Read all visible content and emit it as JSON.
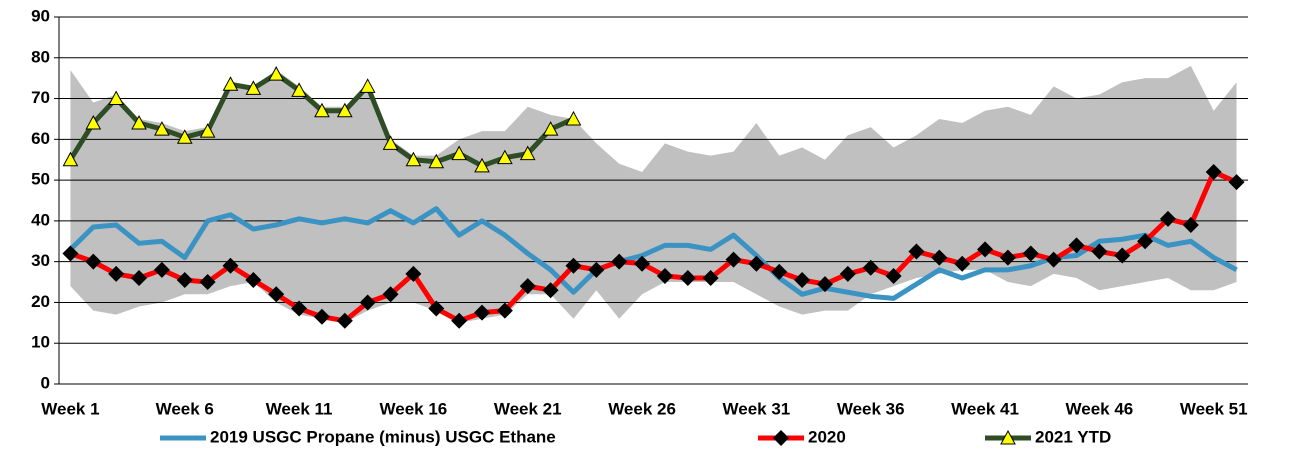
{
  "chart_data": {
    "type": "line",
    "categories": [
      "Week 1",
      null,
      null,
      null,
      null,
      "Week 6",
      null,
      null,
      null,
      null,
      "Week 11",
      null,
      null,
      null,
      null,
      "Week 16",
      null,
      null,
      null,
      null,
      "Week 21",
      null,
      null,
      null,
      null,
      "Week 26",
      null,
      null,
      null,
      null,
      "Week 31",
      null,
      null,
      null,
      null,
      "Week 36",
      null,
      null,
      null,
      null,
      "Week 41",
      null,
      null,
      null,
      null,
      "Week 46",
      null,
      null,
      null,
      null,
      "Week 51",
      null
    ],
    "ylim": [
      0,
      90
    ],
    "yticks": [
      0,
      10,
      20,
      30,
      40,
      50,
      60,
      70,
      80,
      90
    ],
    "grid": true,
    "band": {
      "color": "#c0c0c0",
      "high": [
        77,
        69,
        71,
        65,
        64,
        62,
        63,
        74,
        73,
        77,
        73,
        68,
        68,
        74,
        60,
        56,
        56,
        60,
        62,
        62,
        68,
        66,
        65,
        59,
        54,
        52,
        59,
        57,
        56,
        57,
        64,
        56,
        58,
        55,
        61,
        63,
        58,
        61,
        65,
        64,
        67,
        68,
        66,
        73,
        70,
        71,
        74,
        75,
        75,
        78,
        67,
        74
      ],
      "low": [
        24,
        18,
        17,
        19,
        20,
        22,
        22,
        24,
        25,
        20,
        17,
        16,
        15,
        18,
        20,
        20,
        18,
        15,
        16,
        17,
        22,
        22,
        16,
        23,
        16,
        22,
        25,
        25,
        25,
        25,
        22,
        19,
        17,
        18,
        18,
        22,
        24,
        26,
        27,
        28,
        28,
        25,
        24,
        27,
        26,
        23,
        24,
        25,
        26,
        23,
        23,
        25
      ]
    },
    "series": [
      {
        "name": "2019 USGC Propane (minus) USGC Ethane",
        "color": "#3a93c3",
        "marker": "none",
        "values": [
          33,
          38.5,
          39,
          34.5,
          35,
          31,
          40,
          41.5,
          38,
          39,
          40.5,
          39.5,
          40.5,
          39.5,
          42.5,
          39.5,
          43,
          36.5,
          40,
          36.5,
          32,
          28,
          22.5,
          28,
          30,
          31.5,
          34,
          34,
          33,
          36.5,
          31.5,
          26,
          22,
          23.5,
          22.5,
          21.5,
          21,
          24.5,
          28,
          26,
          28,
          28,
          29,
          31,
          31.5,
          35,
          35.5,
          36.5,
          34,
          35,
          31,
          28
        ]
      },
      {
        "name": "2020",
        "color": "#ff0000",
        "marker": "diamond",
        "values": [
          32,
          30,
          27,
          26,
          28,
          25.5,
          25,
          29,
          25.5,
          22,
          18.5,
          16.5,
          15.5,
          20,
          22,
          27,
          18.5,
          15.5,
          17.5,
          18,
          24,
          23,
          29,
          28,
          30,
          29.5,
          26.5,
          26,
          26,
          30.5,
          29.5,
          27.5,
          25.5,
          24.5,
          27,
          28.5,
          26.5,
          32.5,
          31,
          29.5,
          33,
          31,
          32,
          30.5,
          34,
          32.5,
          31.5,
          35,
          40.5,
          39,
          52,
          49.5
        ]
      },
      {
        "name": "2021 YTD",
        "color": "#2e4d24",
        "marker": "triangle",
        "values": [
          55,
          64,
          70,
          64,
          62.5,
          60.5,
          62,
          73.5,
          72.5,
          76,
          72,
          67,
          67,
          73,
          59,
          55,
          54.5,
          56.5,
          53.5,
          55.5,
          56.5,
          62.5,
          65,
          null,
          null,
          null,
          null,
          null,
          null,
          null,
          null,
          null,
          null,
          null,
          null,
          null,
          null,
          null,
          null,
          null,
          null,
          null,
          null,
          null,
          null,
          null,
          null,
          null,
          null,
          null,
          null,
          null
        ]
      }
    ]
  }
}
